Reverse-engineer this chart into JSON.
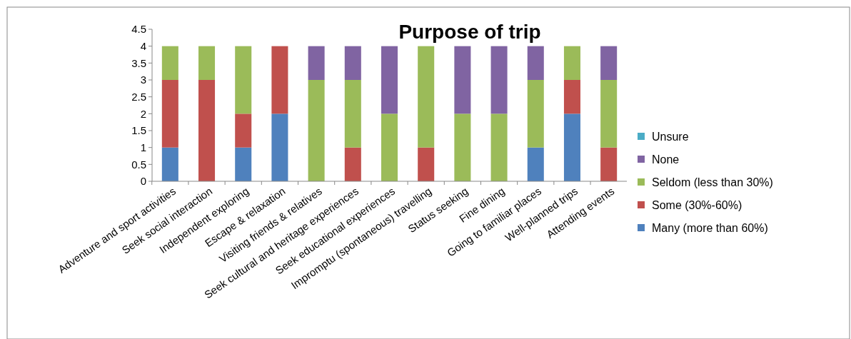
{
  "chart_data": {
    "type": "bar",
    "title": "Purpose of trip",
    "stacked": true,
    "legend": "right",
    "grid": false,
    "categories": [
      "Adventure and sport activities",
      "Seek social interaction",
      "Independent exploring",
      "Escape & relaxation",
      "Visiting friends & relatives",
      "Seek cultural and heritage experiences",
      "Seek educational experiences",
      "Impromptu (spontaneous) travelling",
      "Status seeking",
      "Fine dining",
      "Going to familiar places",
      "Well-planned trips",
      "Attending events"
    ],
    "ylim": [
      0,
      4.5
    ],
    "yticks": [
      0,
      0.5,
      1,
      1.5,
      2,
      2.5,
      3,
      3.5,
      4,
      4.5
    ],
    "series": [
      {
        "name": "Many (more than 60%)",
        "color": "#4f81bd",
        "values": [
          1,
          0,
          1,
          2,
          0,
          0,
          0,
          0,
          0,
          0,
          1,
          2,
          0
        ]
      },
      {
        "name": "Some (30%-60%)",
        "color": "#c0504d",
        "values": [
          2,
          3,
          1,
          2,
          0,
          1,
          0,
          1,
          0,
          0,
          0,
          1,
          1
        ]
      },
      {
        "name": "Seldom (less than 30%)",
        "color": "#9bbb59",
        "values": [
          1,
          1,
          2,
          0,
          3,
          2,
          2,
          3,
          2,
          2,
          2,
          1,
          2
        ]
      },
      {
        "name": "None",
        "color": "#8064a2",
        "values": [
          0,
          0,
          0,
          0,
          1,
          1,
          2,
          0,
          2,
          2,
          1,
          0,
          1
        ]
      },
      {
        "name": "Unsure",
        "color": "#4bacc6",
        "values": [
          0,
          0,
          0,
          0,
          0,
          0,
          0,
          0,
          0,
          0,
          0,
          0,
          0
        ]
      }
    ]
  }
}
